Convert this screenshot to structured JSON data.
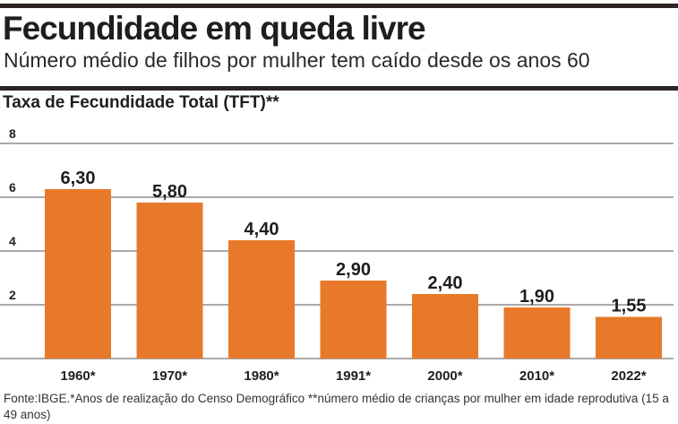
{
  "header": {
    "title": "Fecundidade em queda livre",
    "subtitle": "Número médio de filhos por mulher tem caído desde os anos 60"
  },
  "source_note": "Fonte:IBGE.*Anos de realização do Censo Demográfico **número médio de crianças por mulher em idade reprodutiva (15 a 49 anos)",
  "colors": {
    "bar": "#e8792a",
    "grid": "#555555",
    "rule": "#2b2421"
  },
  "chart_data": {
    "type": "bar",
    "title": "Taxa de Fecundidade Total (TFT)**",
    "xlabel": "",
    "ylabel": "",
    "categories": [
      "1960*",
      "1970*",
      "1980*",
      "1991*",
      "2000*",
      "2010*",
      "2022*"
    ],
    "values": [
      6.3,
      5.8,
      4.4,
      2.9,
      2.4,
      1.9,
      1.55
    ],
    "value_labels": [
      "6,30",
      "5,80",
      "4,40",
      "2,90",
      "2,40",
      "1,90",
      "1,55"
    ],
    "ylim": [
      0,
      8
    ],
    "yticks": [
      2,
      4,
      6,
      8
    ],
    "grid": true,
    "legend": "none"
  }
}
